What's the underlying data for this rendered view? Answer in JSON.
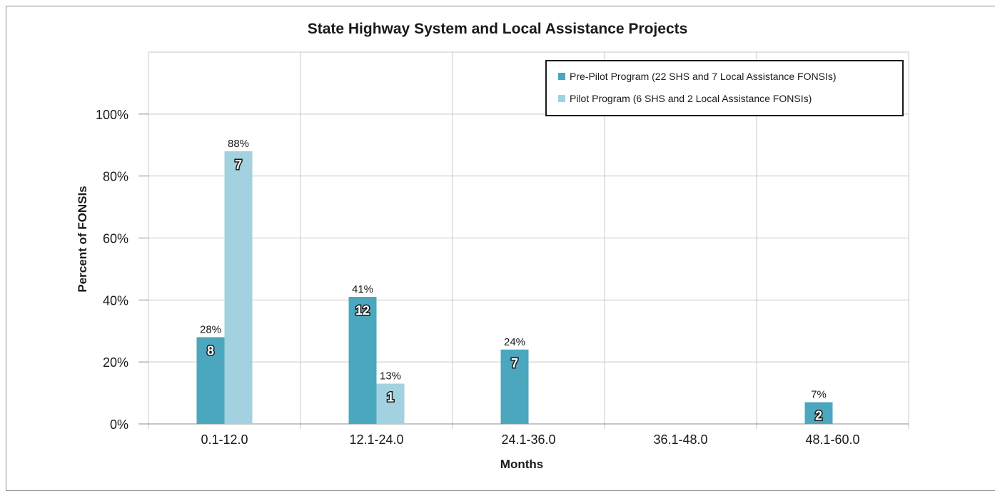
{
  "chart_data": {
    "type": "bar",
    "title": "State Highway System and Local Assistance Projects",
    "xlabel": "Months",
    "ylabel": "Percent of FONSIs",
    "categories": [
      "0.1-12.0",
      "12.1-24.0",
      "24.1-36.0",
      "36.1-48.0",
      "48.1-60.0"
    ],
    "ylim": [
      0,
      1.2
    ],
    "yticks": [
      {
        "value": 0,
        "label": "0%"
      },
      {
        "value": 0.2,
        "label": "20%"
      },
      {
        "value": 0.4,
        "label": "40%"
      },
      {
        "value": 0.6,
        "label": "60%"
      },
      {
        "value": 0.8,
        "label": "80%"
      },
      {
        "value": 1.0,
        "label": "100%"
      }
    ],
    "grid": true,
    "legend_position": "top-right",
    "series": [
      {
        "name": "Pre-Pilot Program (22 SHS and 7 Local Assistance FONSIs)",
        "color": "#4aa7bd",
        "values": [
          0.28,
          0.41,
          0.24,
          null,
          0.07
        ],
        "percent_labels": [
          "28%",
          "41%",
          "24%",
          null,
          "7%"
        ],
        "count_labels": [
          "8",
          "12",
          "7",
          null,
          "2"
        ]
      },
      {
        "name": "Pilot Program (6 SHS and 2 Local Assistance FONSIs)",
        "color": "#a2d1df",
        "values": [
          0.88,
          0.13,
          null,
          null,
          null
        ],
        "percent_labels": [
          "88%",
          "13%",
          null,
          null,
          null
        ],
        "count_labels": [
          "7",
          "1",
          null,
          null,
          null
        ]
      }
    ]
  }
}
